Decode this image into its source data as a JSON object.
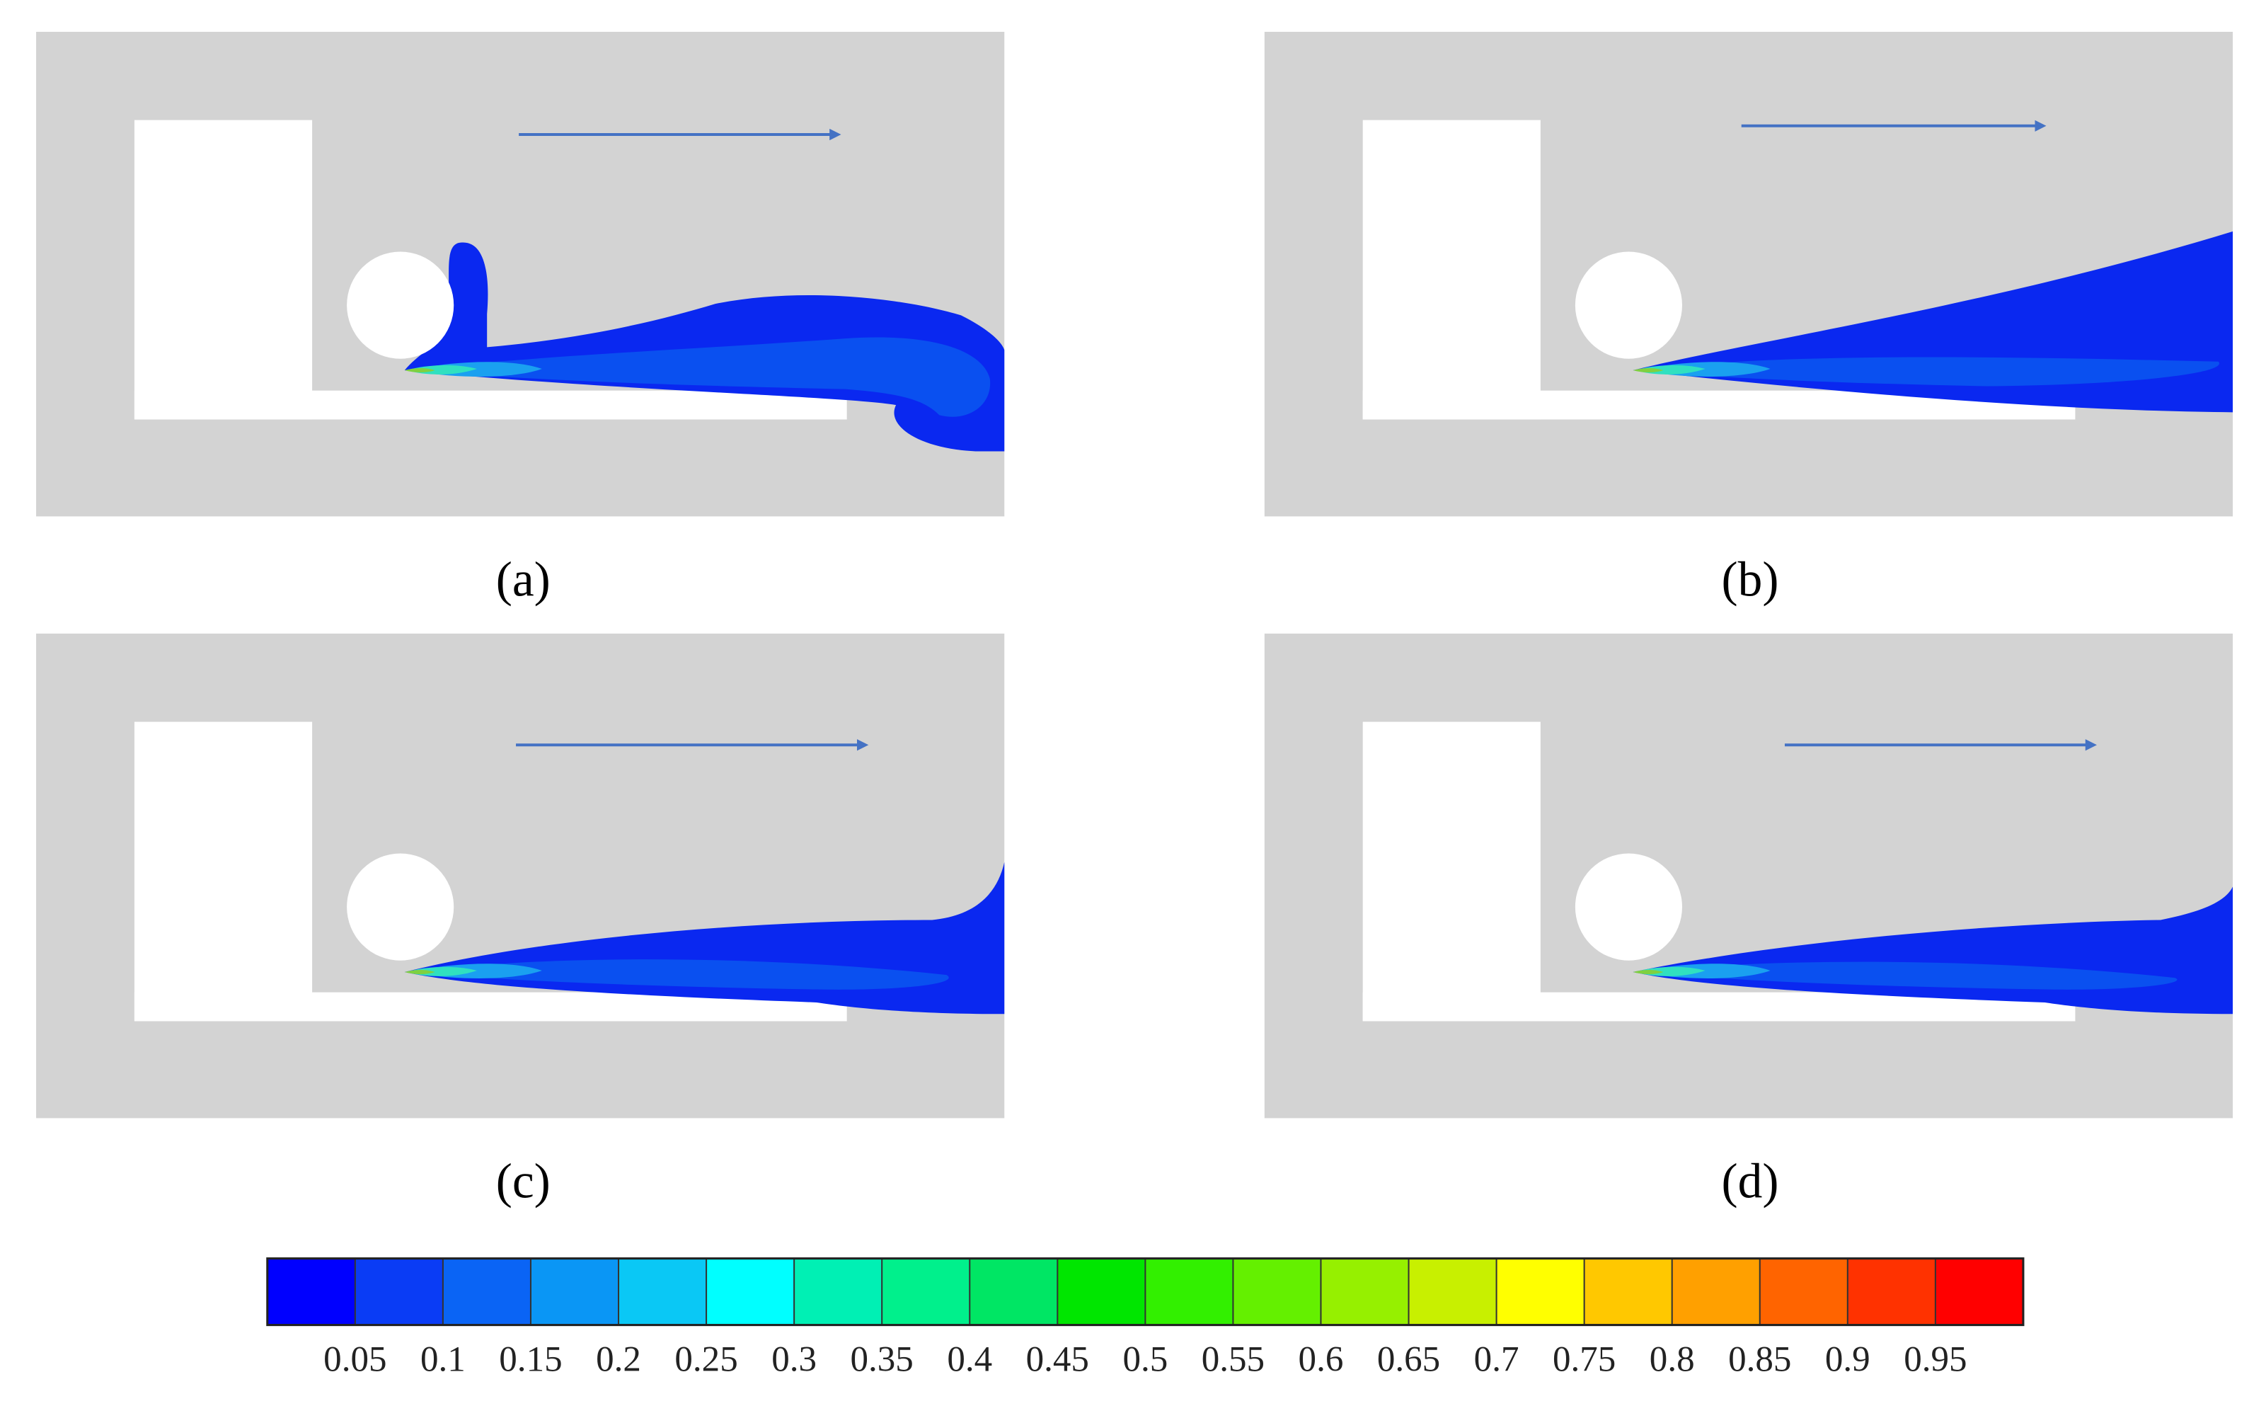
{
  "panels": [
    {
      "label": "(a)"
    },
    {
      "label": "(b)"
    },
    {
      "label": "(c)"
    },
    {
      "label": "(d)"
    }
  ],
  "colorbar": {
    "lim": [
      0,
      1
    ],
    "ticks": [
      0.05,
      0.1,
      0.15,
      0.2,
      0.25,
      0.3,
      0.35,
      0.4,
      0.45,
      0.5,
      0.55,
      0.6,
      0.65,
      0.7,
      0.75,
      0.8,
      0.85,
      0.9,
      0.95
    ],
    "colors": [
      "#0000ff",
      "#0a3cf5",
      "#0a64f5",
      "#0a96f5",
      "#0ac8f5",
      "#00ffff",
      "#00f0b4",
      "#00f08c",
      "#00e664",
      "#00e600",
      "#32f000",
      "#64f000",
      "#96f000",
      "#c8f000",
      "#ffff00",
      "#ffc800",
      "#ffa000",
      "#ff6400",
      "#ff3200",
      "#ff0000"
    ]
  }
}
